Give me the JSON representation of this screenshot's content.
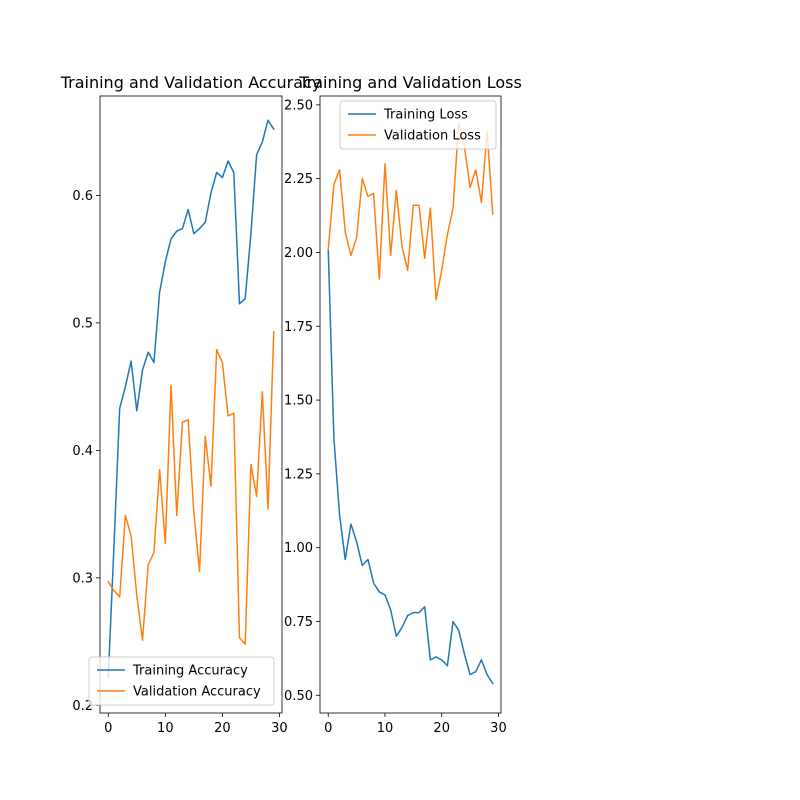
{
  "chart_data": [
    {
      "type": "line",
      "title": "Training and Validation Accuracy",
      "xlabel": "",
      "ylabel": "",
      "xlim": [
        -1.45,
        30.45
      ],
      "ylim": [
        0.194,
        0.678
      ],
      "xticks": [
        0,
        10,
        20,
        30
      ],
      "yticks": [
        0.2,
        0.3,
        0.4,
        0.5,
        0.6
      ],
      "xtick_labels": [
        "0",
        "10",
        "20",
        "30"
      ],
      "ytick_labels": [
        "0.2",
        "0.3",
        "0.4",
        "0.5",
        "0.6"
      ],
      "grid": false,
      "legend_position": "lower-right",
      "x": [
        0,
        1,
        2,
        3,
        4,
        5,
        6,
        7,
        8,
        9,
        10,
        11,
        12,
        13,
        14,
        15,
        16,
        17,
        18,
        19,
        20,
        21,
        22,
        23,
        24,
        25,
        26,
        27,
        28,
        29
      ],
      "series": [
        {
          "name": "Training Accuracy",
          "color": "#1f77b4",
          "values": [
            0.222,
            0.325,
            0.433,
            0.45,
            0.47,
            0.431,
            0.463,
            0.477,
            0.469,
            0.524,
            0.548,
            0.566,
            0.572,
            0.574,
            0.589,
            0.57,
            0.574,
            0.579,
            0.602,
            0.618,
            0.614,
            0.627,
            0.618,
            0.515,
            0.519,
            0.57,
            0.632,
            0.642,
            0.659,
            0.652
          ]
        },
        {
          "name": "Validation Accuracy",
          "color": "#ff7f0e",
          "values": [
            0.297,
            0.29,
            0.285,
            0.349,
            0.333,
            0.286,
            0.251,
            0.31,
            0.32,
            0.385,
            0.327,
            0.451,
            0.349,
            0.422,
            0.424,
            0.351,
            0.305,
            0.411,
            0.372,
            0.479,
            0.469,
            0.427,
            0.429,
            0.253,
            0.248,
            0.389,
            0.364,
            0.446,
            0.354,
            0.493
          ]
        }
      ]
    },
    {
      "type": "line",
      "title": "Training and Validation Loss",
      "xlabel": "",
      "ylabel": "",
      "xlim": [
        -1.45,
        30.45
      ],
      "ylim": [
        0.44,
        2.53
      ],
      "xticks": [
        0,
        10,
        20,
        30
      ],
      "yticks": [
        0.5,
        0.75,
        1.0,
        1.25,
        1.5,
        1.75,
        2.0,
        2.25,
        2.5
      ],
      "xtick_labels": [
        "0",
        "10",
        "20",
        "30"
      ],
      "ytick_labels": [
        "0.50",
        "0.75",
        "1.00",
        "1.25",
        "1.50",
        "1.75",
        "2.00",
        "2.25",
        "2.50"
      ],
      "grid": false,
      "legend_position": "upper-right",
      "x": [
        0,
        1,
        2,
        3,
        4,
        5,
        6,
        7,
        8,
        9,
        10,
        11,
        12,
        13,
        14,
        15,
        16,
        17,
        18,
        19,
        20,
        21,
        22,
        23,
        24,
        25,
        26,
        27,
        28,
        29
      ],
      "series": [
        {
          "name": "Training Loss",
          "color": "#1f77b4",
          "values": [
            2.01,
            1.37,
            1.11,
            0.96,
            1.08,
            1.02,
            0.94,
            0.96,
            0.88,
            0.85,
            0.84,
            0.79,
            0.7,
            0.73,
            0.77,
            0.78,
            0.78,
            0.8,
            0.62,
            0.63,
            0.62,
            0.6,
            0.75,
            0.72,
            0.64,
            0.57,
            0.58,
            0.62,
            0.57,
            0.54
          ]
        },
        {
          "name": "Validation Loss",
          "color": "#ff7f0e",
          "values": [
            2.01,
            2.23,
            2.28,
            2.07,
            1.99,
            2.05,
            2.25,
            2.19,
            2.2,
            1.91,
            2.3,
            1.99,
            2.21,
            2.02,
            1.94,
            2.16,
            2.16,
            1.98,
            2.15,
            1.84,
            1.94,
            2.06,
            2.15,
            2.44,
            2.36,
            2.22,
            2.28,
            2.17,
            2.41,
            2.13
          ]
        }
      ]
    }
  ]
}
